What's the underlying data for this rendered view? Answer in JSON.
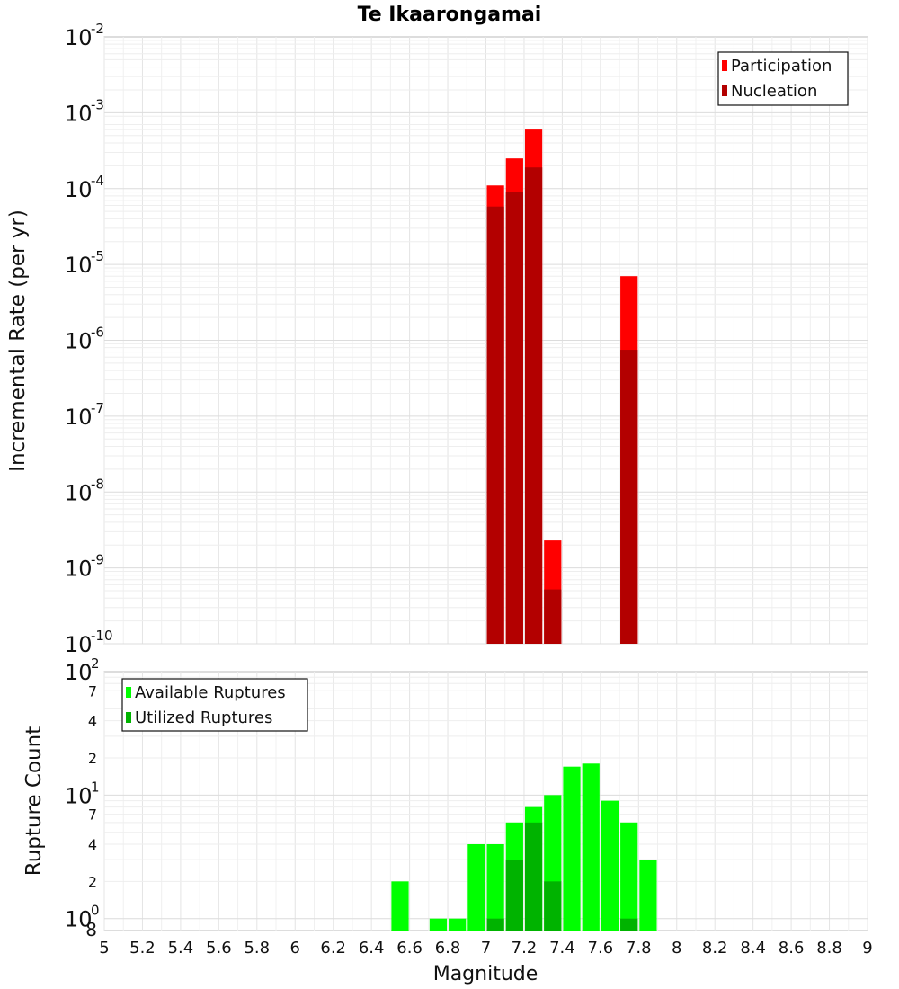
{
  "chart_data": [
    {
      "type": "bar",
      "title": "Te Ikaarongamai",
      "ylabel": "Incremental Rate (per yr)",
      "xlabel": "",
      "yscale": "log",
      "xlim": [
        5,
        9
      ],
      "ylim": [
        1e-10,
        0.01
      ],
      "grid": true,
      "legend_position": "top-right",
      "bin_width": 0.1,
      "series": [
        {
          "name": "Participation",
          "color": "#ff0000",
          "x": [
            7.05,
            7.15,
            7.25,
            7.35,
            7.75
          ],
          "values": [
            0.00011,
            0.00025,
            0.0006,
            2.3e-09,
            7e-06
          ]
        },
        {
          "name": "Nucleation",
          "color": "#b30000",
          "x": [
            7.05,
            7.15,
            7.25,
            7.35,
            7.75
          ],
          "values": [
            5.8e-05,
            9e-05,
            0.00019,
            5.2e-10,
            7.5e-07
          ]
        }
      ],
      "y_tick_labels": [
        {
          "base": "10",
          "exp": "-10"
        },
        {
          "base": "10",
          "exp": "-9"
        },
        {
          "base": "10",
          "exp": "-8"
        },
        {
          "base": "10",
          "exp": "-7"
        },
        {
          "base": "10",
          "exp": "-6"
        },
        {
          "base": "10",
          "exp": "-5"
        },
        {
          "base": "10",
          "exp": "-4"
        },
        {
          "base": "10",
          "exp": "-3"
        },
        {
          "base": "10",
          "exp": "-2"
        }
      ]
    },
    {
      "type": "bar",
      "title": "",
      "ylabel": "Rupture Count",
      "xlabel": "Magnitude",
      "yscale": "log",
      "xlim": [
        5,
        9
      ],
      "ylim": [
        0.8,
        100
      ],
      "grid": true,
      "legend_position": "top-left",
      "bin_width": 0.1,
      "series": [
        {
          "name": "Available Ruptures",
          "color": "#00ff00",
          "x": [
            6.55,
            6.75,
            6.85,
            6.95,
            7.05,
            7.15,
            7.25,
            7.35,
            7.45,
            7.55,
            7.65,
            7.75,
            7.85
          ],
          "values": [
            2,
            1,
            1,
            4,
            4,
            6,
            8,
            10,
            17,
            18,
            9,
            6,
            3
          ]
        },
        {
          "name": "Utilized Ruptures",
          "color": "#00b300",
          "x": [
            7.05,
            7.15,
            7.25,
            7.35,
            7.75
          ],
          "values": [
            1,
            3,
            6,
            2,
            1
          ]
        }
      ],
      "y_tick_labels": [
        {
          "base": "10",
          "exp": "0"
        },
        {
          "base": "2",
          "exp": ""
        },
        {
          "base": "4",
          "exp": ""
        },
        {
          "base": "7",
          "exp": ""
        },
        {
          "base": "10",
          "exp": "1"
        },
        {
          "base": "2",
          "exp": ""
        },
        {
          "base": "4",
          "exp": ""
        },
        {
          "base": "7",
          "exp": ""
        },
        {
          "base": "10",
          "exp": "2"
        }
      ],
      "y_floor_label": "8",
      "x_tick_labels": [
        "5",
        "5.2",
        "5.4",
        "5.6",
        "5.8",
        "6",
        "6.2",
        "6.4",
        "6.6",
        "6.8",
        "7",
        "7.2",
        "7.4",
        "7.6",
        "7.8",
        "8",
        "8.2",
        "8.4",
        "8.6",
        "8.8",
        "9"
      ]
    }
  ]
}
